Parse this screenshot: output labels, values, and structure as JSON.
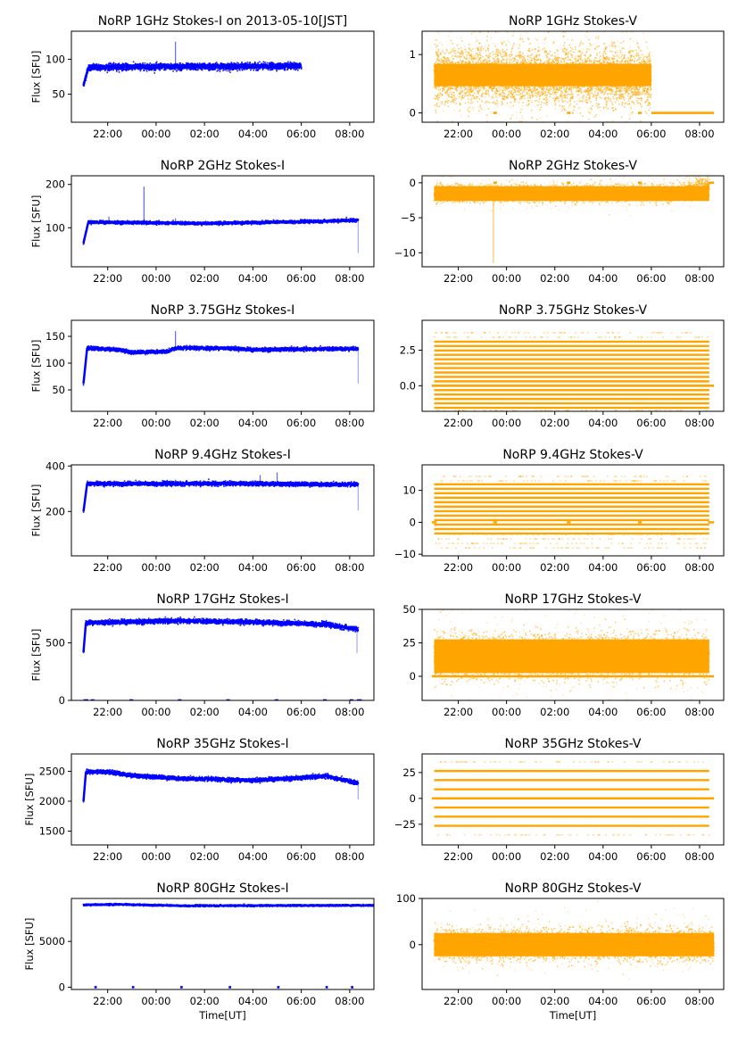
{
  "figure": {
    "xaxis_ticks": [
      "22:00",
      "00:00",
      "02:00",
      "04:00",
      "06:00",
      "08:00"
    ],
    "xaxis_range_hours": [
      20.5,
      33.0
    ],
    "xlabel": "Time[UT]",
    "ylabel": "Flux [SFU]",
    "colors": {
      "stokes_i": "#0000ff",
      "stokes_v": "#ffa500",
      "axes": "#000000"
    }
  },
  "chart_data": [
    {
      "type": "scatter",
      "id": "i1",
      "title": "NoRP 1GHz Stokes-I on 2013-05-10[JST]",
      "ylabel": "Flux [SFU]",
      "yticks": [
        50,
        100
      ],
      "ytick_labels": [
        "50",
        "100"
      ],
      "ylim": [
        10,
        140
      ],
      "series": {
        "name": "Stokes-I",
        "start": 21.0,
        "end": 30.0,
        "base": [
          [
            21.0,
            63
          ],
          [
            21.2,
            88
          ],
          [
            22.3,
            89
          ],
          [
            30.0,
            90
          ]
        ],
        "noise": 4,
        "spikes": [
          [
            24.8,
            125
          ]
        ],
        "zeros": []
      }
    },
    {
      "type": "scatter",
      "id": "v1",
      "title": "NoRP 1GHz Stokes-V",
      "ylabel": "",
      "yticks": [
        0,
        1
      ],
      "ytick_labels": [
        "0",
        "1"
      ],
      "ylim": [
        -0.16,
        1.4
      ],
      "series": {
        "name": "Stokes-V",
        "start": 21.0,
        "end": 30.0,
        "base": [
          [
            21.0,
            0.65
          ],
          [
            30.0,
            0.6
          ]
        ],
        "noise": 0.35,
        "spikes": [],
        "zeros": [
          [
            23.45,
            23.6
          ],
          [
            26.5,
            26.65
          ],
          [
            29.45,
            29.6
          ],
          [
            30.0,
            32.6
          ]
        ]
      }
    },
    {
      "type": "scatter",
      "id": "i2",
      "title": "NoRP 2GHz Stokes-I",
      "ylabel": "Flux [SFU]",
      "yticks": [
        100,
        200
      ],
      "ytick_labels": [
        "100",
        "200"
      ],
      "ylim": [
        10,
        220
      ],
      "series": {
        "name": "Stokes-I",
        "start": 21.0,
        "end": 32.35,
        "base": [
          [
            21.0,
            65
          ],
          [
            21.2,
            113
          ],
          [
            26,
            110
          ],
          [
            31,
            115
          ],
          [
            32.35,
            118
          ]
        ],
        "noise": 3,
        "spikes": [
          [
            23.5,
            195
          ],
          [
            22.05,
            126
          ],
          [
            24.8,
            122
          ],
          [
            23.1,
            118
          ]
        ],
        "dropouts": [
          [
            32.35,
            42
          ]
        ],
        "zeros": []
      }
    },
    {
      "type": "scatter",
      "id": "v2",
      "title": "NoRP 2GHz Stokes-V",
      "ylabel": "",
      "yticks": [
        -10,
        -5,
        0
      ],
      "ytick_labels": [
        "−10",
        "−5",
        "0"
      ],
      "ylim": [
        -12,
        1
      ],
      "series": {
        "name": "Stokes-V",
        "start": 21.0,
        "end": 32.4,
        "base": [
          [
            21.0,
            -1.5
          ],
          [
            31.0,
            -1.5
          ],
          [
            32.4,
            -0.5
          ]
        ],
        "noise": 1.0,
        "spikes": [
          [
            23.45,
            -11.5
          ]
        ],
        "zeros": [
          [
            23.45,
            23.6
          ],
          [
            26.5,
            26.65
          ],
          [
            29.45,
            29.6
          ],
          [
            32.4,
            32.6
          ]
        ]
      }
    },
    {
      "type": "scatter",
      "id": "i3",
      "title": "NoRP 3.75GHz Stokes-I",
      "ylabel": "Flux [SFU]",
      "yticks": [
        50,
        100,
        150
      ],
      "ytick_labels": [
        "50",
        "100",
        "150"
      ],
      "ylim": [
        10,
        180
      ],
      "series": {
        "name": "Stokes-I",
        "start": 21.0,
        "end": 32.35,
        "base": [
          [
            21.0,
            62
          ],
          [
            21.15,
            128
          ],
          [
            22.5,
            125
          ],
          [
            23.0,
            120
          ],
          [
            24.5,
            122
          ],
          [
            24.8,
            128
          ],
          [
            27,
            128
          ],
          [
            28,
            125
          ],
          [
            32.35,
            127
          ]
        ],
        "noise": 3,
        "spikes": [
          [
            24.8,
            160
          ]
        ],
        "dropouts": [
          [
            32.35,
            62
          ]
        ],
        "zeros": []
      }
    },
    {
      "type": "scatter",
      "id": "v3",
      "title": "NoRP 3.75GHz Stokes-V",
      "ylabel": "",
      "yticks": [
        0.0,
        2.5
      ],
      "ytick_labels": [
        "0.0",
        "2.5"
      ],
      "ylim": [
        -1.8,
        4.6
      ],
      "series": {
        "name": "Stokes-V",
        "start": 21.0,
        "end": 32.4,
        "levels_step": 0.31,
        "levels_range": [
          -1.55,
          3.1
        ],
        "sparse_range": [
          -1.85,
          4.0
        ],
        "zeros": [
          [
            20.9,
            32.6
          ]
        ]
      }
    },
    {
      "type": "scatter",
      "id": "i4",
      "title": "NoRP 9.4GHz Stokes-I",
      "ylabel": "Flux [SFU]",
      "yticks": [
        200,
        400
      ],
      "ytick_labels": [
        "200",
        "400"
      ],
      "ylim": [
        5,
        405
      ],
      "series": {
        "name": "Stokes-I",
        "start": 21.0,
        "end": 32.35,
        "base": [
          [
            21.0,
            200
          ],
          [
            21.15,
            322
          ],
          [
            25.0,
            322
          ],
          [
            27.0,
            323
          ],
          [
            32.35,
            318
          ]
        ],
        "noise": 8,
        "spikes": [
          [
            28.3,
            360
          ],
          [
            29.0,
            372
          ],
          [
            24.8,
            340
          ]
        ],
        "dropouts": [
          [
            32.35,
            205
          ]
        ],
        "zeros": []
      }
    },
    {
      "type": "scatter",
      "id": "v4",
      "title": "NoRP 9.4GHz Stokes-V",
      "ylabel": "",
      "yticks": [
        -10,
        0,
        10
      ],
      "ytick_labels": [
        "−10",
        "0",
        "10"
      ],
      "ylim": [
        -10.5,
        18
      ],
      "series": {
        "name": "Stokes-V",
        "start": 21.0,
        "end": 32.4,
        "levels_step": 1.4,
        "levels_range": [
          -3.5,
          12.5
        ],
        "sparse_range": [
          -8,
          15
        ],
        "zeros": [
          [
            20.9,
            21.1
          ],
          [
            23.45,
            23.6
          ],
          [
            26.5,
            26.65
          ],
          [
            29.45,
            29.6
          ],
          [
            32.35,
            32.6
          ]
        ]
      }
    },
    {
      "type": "scatter",
      "id": "i5",
      "title": "NoRP 17GHz Stokes-I",
      "ylabel": "Flux [SFU]",
      "yticks": [
        0,
        500
      ],
      "ytick_labels": [
        "0",
        "500"
      ],
      "ylim": [
        0,
        790
      ],
      "series": {
        "name": "Stokes-I",
        "start": 21.0,
        "end": 32.35,
        "base": [
          [
            21.0,
            420
          ],
          [
            21.1,
            675
          ],
          [
            25.0,
            690
          ],
          [
            28.0,
            680
          ],
          [
            31.0,
            660
          ],
          [
            32.35,
            615
          ]
        ],
        "noise": 18,
        "spikes": [],
        "dropouts": [
          [
            32.3,
            410
          ]
        ],
        "zeros": [
          [
            21.0,
            21.2
          ],
          [
            21.3,
            21.45
          ],
          [
            22.9,
            23.05
          ],
          [
            24.9,
            25.05
          ],
          [
            26.9,
            27.05
          ],
          [
            28.9,
            29.05
          ],
          [
            30.9,
            31.05
          ],
          [
            32.0,
            32.15
          ],
          [
            32.3,
            32.5
          ]
        ]
      }
    },
    {
      "type": "scatter",
      "id": "v5",
      "title": "NoRP 17GHz Stokes-V",
      "ylabel": "",
      "yticks": [
        0,
        25,
        50
      ],
      "ytick_labels": [
        "0",
        "25",
        "50"
      ],
      "ylim": [
        -18,
        50
      ],
      "series": {
        "name": "Stokes-V",
        "start": 21.0,
        "end": 32.4,
        "base": [
          [
            21.0,
            15
          ],
          [
            32.4,
            15
          ]
        ],
        "noise": 14,
        "spikes": [],
        "zeros": [
          [
            20.9,
            32.6
          ]
        ]
      }
    },
    {
      "type": "scatter",
      "id": "i6",
      "title": "NoRP 35GHz Stokes-I",
      "ylabel": "Flux [SFU]",
      "yticks": [
        1500,
        2000,
        2500
      ],
      "ytick_labels": [
        "1500",
        "2000",
        "2500"
      ],
      "ylim": [
        1270,
        2790
      ],
      "series": {
        "name": "Stokes-I",
        "start": 21.0,
        "end": 32.35,
        "base": [
          [
            21.0,
            2000
          ],
          [
            21.1,
            2490
          ],
          [
            22.0,
            2490
          ],
          [
            23.0,
            2430
          ],
          [
            25.0,
            2380
          ],
          [
            28.0,
            2350
          ],
          [
            30.0,
            2390
          ],
          [
            31.0,
            2420
          ],
          [
            32.35,
            2300
          ]
        ],
        "noise": 30,
        "spikes": [],
        "dropouts": [
          [
            32.35,
            2030
          ]
        ],
        "zeros": []
      }
    },
    {
      "type": "scatter",
      "id": "v6",
      "title": "NoRP 35GHz Stokes-V",
      "ylabel": "",
      "yticks": [
        -25,
        0,
        25
      ],
      "ytick_labels": [
        "−25",
        "0",
        "25"
      ],
      "ylim": [
        -45,
        43
      ],
      "series": {
        "name": "Stokes-V",
        "start": 21.0,
        "end": 32.4,
        "levels": [
          -26.5,
          -17.7,
          -8.8,
          0,
          8.8,
          17.7,
          26.5
        ],
        "sparse": [
          -35.3,
          35.3
        ],
        "zeros": [
          [
            20.9,
            32.6
          ]
        ]
      }
    },
    {
      "type": "scatter",
      "id": "i7",
      "title": "NoRP 80GHz Stokes-I",
      "ylabel": "Flux [SFU]",
      "yticks": [
        0,
        5000
      ],
      "ytick_labels": [
        "0",
        "5000"
      ],
      "ylim": [
        -250,
        9700
      ],
      "series": {
        "name": "Stokes-I",
        "start": 21.0,
        "end": 33.0,
        "base": [
          [
            21.0,
            9000
          ],
          [
            22.5,
            9050
          ],
          [
            25,
            8900
          ],
          [
            33,
            8950
          ]
        ],
        "noise": 80,
        "spikes": [],
        "zeros": [
          [
            21.45,
            21.55
          ],
          [
            23.0,
            23.1
          ],
          [
            25.0,
            25.1
          ],
          [
            27.0,
            27.1
          ],
          [
            29.0,
            29.1
          ],
          [
            31.0,
            31.1
          ],
          [
            32.05,
            32.15
          ]
        ]
      }
    },
    {
      "type": "scatter",
      "id": "v7",
      "title": "NoRP 80GHz Stokes-V",
      "ylabel": "",
      "yticks": [
        0,
        100
      ],
      "ytick_labels": [
        "0",
        "100"
      ],
      "ylim": [
        -97,
        100
      ],
      "series": {
        "name": "Stokes-V",
        "start": 21.0,
        "end": 32.6,
        "base": [
          [
            21.0,
            0
          ],
          [
            32.6,
            0
          ]
        ],
        "noise": 28,
        "spikes": [],
        "zeros": []
      }
    }
  ]
}
